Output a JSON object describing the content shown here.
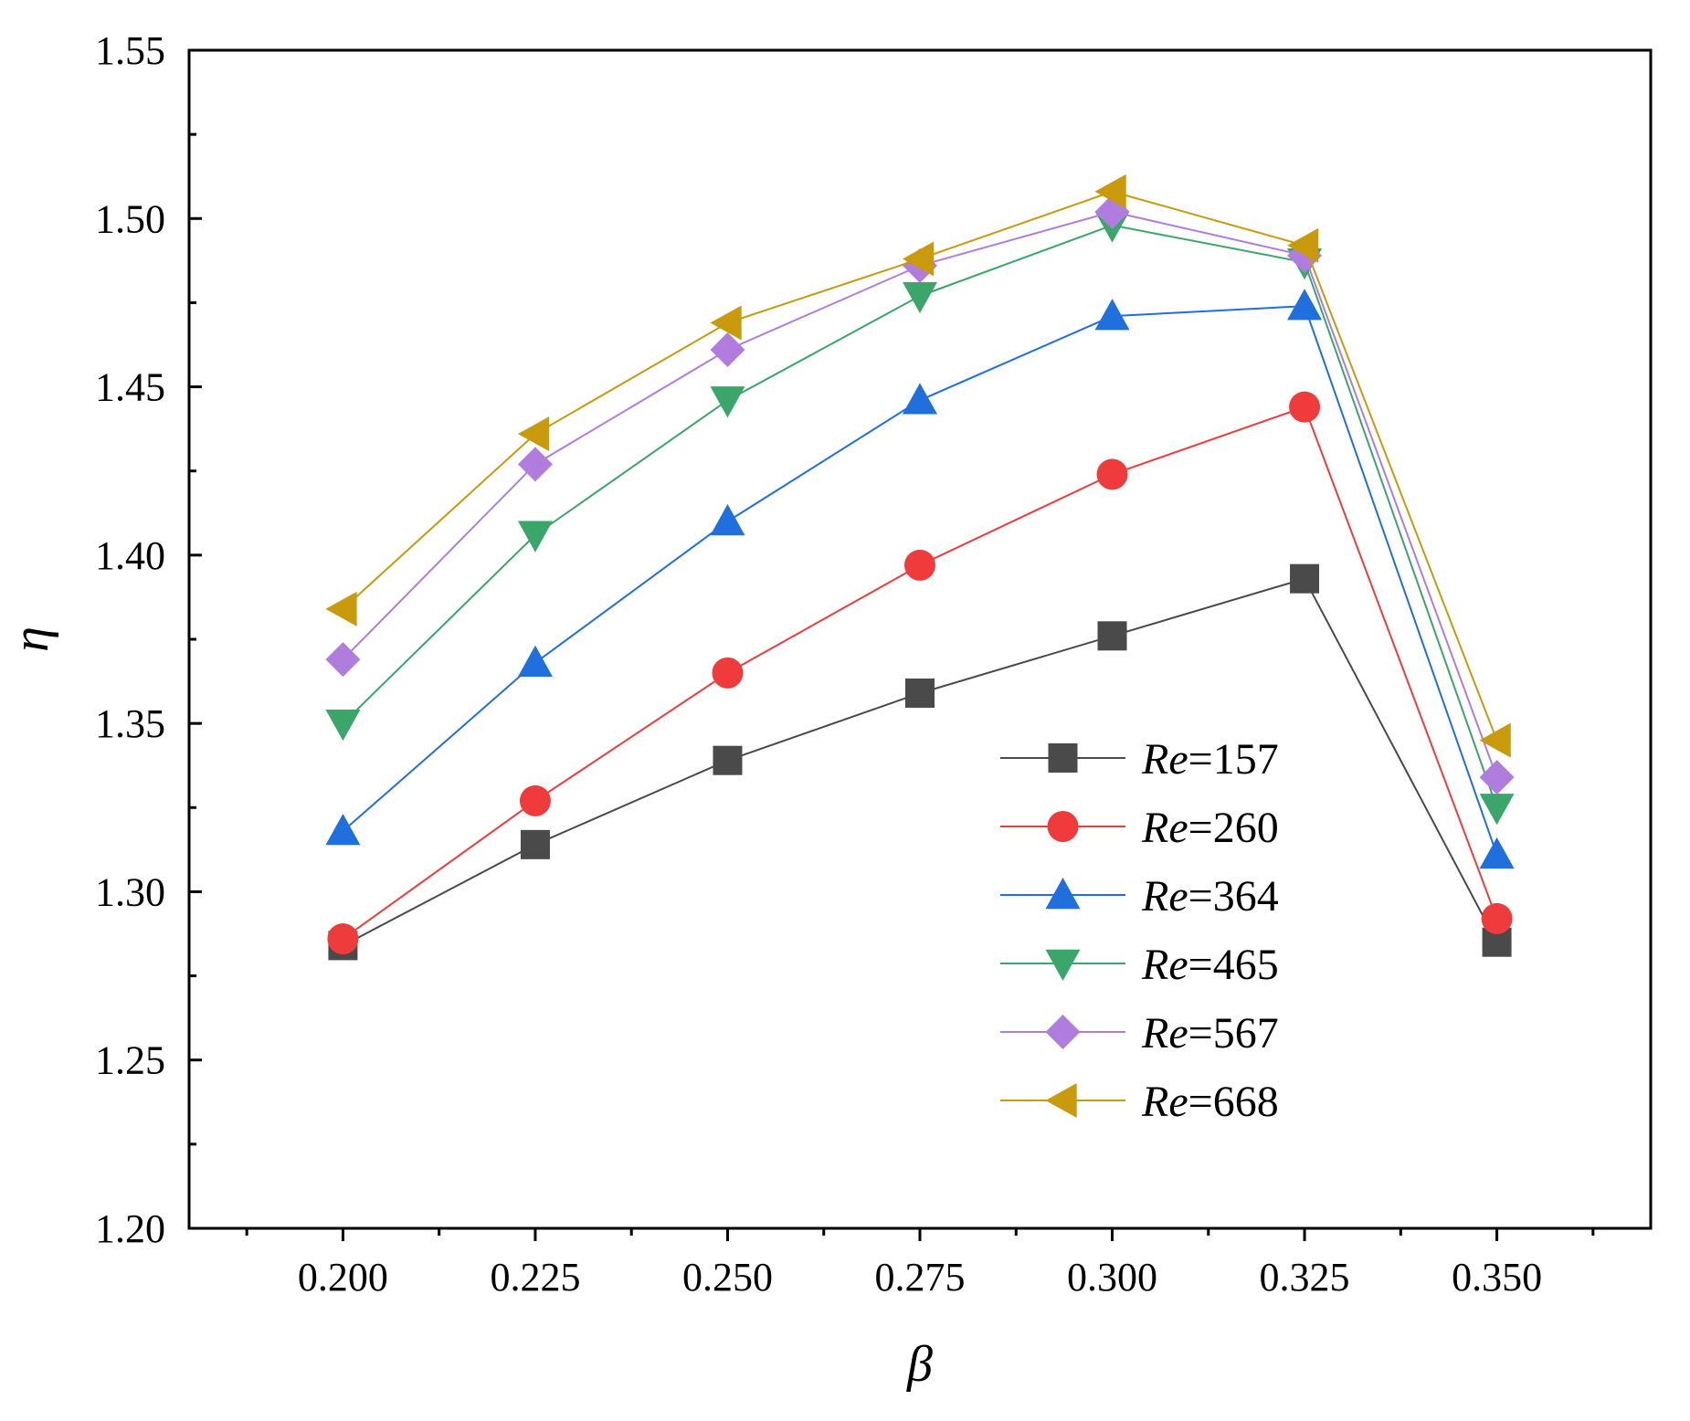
{
  "chart_data": {
    "type": "line",
    "title": "",
    "xlabel": "β",
    "ylabel": "η",
    "x": [
      0.2,
      0.225,
      0.25,
      0.275,
      0.3,
      0.325,
      0.35
    ],
    "xlim": [
      0.18,
      0.37
    ],
    "ylim": [
      1.2,
      1.55
    ],
    "x_ticks": [
      "0.200",
      "0.225",
      "0.250",
      "0.275",
      "0.300",
      "0.325",
      "0.350"
    ],
    "y_ticks": [
      "1.20",
      "1.25",
      "1.30",
      "1.35",
      "1.40",
      "1.45",
      "1.50",
      "1.55"
    ],
    "legend_position": "lower-right",
    "grid": false,
    "series": [
      {
        "name": "Re=157",
        "prefix": "Re",
        "suffix": "=157",
        "marker": "square",
        "color": "#4a4a4a",
        "values": [
          1.284,
          1.314,
          1.339,
          1.359,
          1.376,
          1.393,
          1.285
        ]
      },
      {
        "name": "Re=260",
        "prefix": "Re",
        "suffix": "=260",
        "marker": "circle",
        "color": "#ef3b3b",
        "values": [
          1.286,
          1.327,
          1.365,
          1.397,
          1.424,
          1.444,
          1.292
        ]
      },
      {
        "name": "Re=364",
        "prefix": "Re",
        "suffix": "=364",
        "marker": "triangle-up",
        "color": "#1f6fdf",
        "values": [
          1.318,
          1.368,
          1.41,
          1.446,
          1.471,
          1.474,
          1.311
        ]
      },
      {
        "name": "Re=465",
        "prefix": "Re",
        "suffix": "=465",
        "marker": "triangle-down",
        "color": "#3aa66a",
        "values": [
          1.35,
          1.406,
          1.446,
          1.477,
          1.498,
          1.487,
          1.325
        ]
      },
      {
        "name": "Re=567",
        "prefix": "Re",
        "suffix": "=567",
        "marker": "diamond",
        "color": "#b07ddf",
        "values": [
          1.369,
          1.427,
          1.461,
          1.486,
          1.502,
          1.489,
          1.334
        ]
      },
      {
        "name": "Re=668",
        "prefix": "Re",
        "suffix": "=668",
        "marker": "triangle-left",
        "color": "#c89a0c",
        "values": [
          1.384,
          1.436,
          1.469,
          1.488,
          1.508,
          1.492,
          1.345
        ]
      }
    ]
  }
}
